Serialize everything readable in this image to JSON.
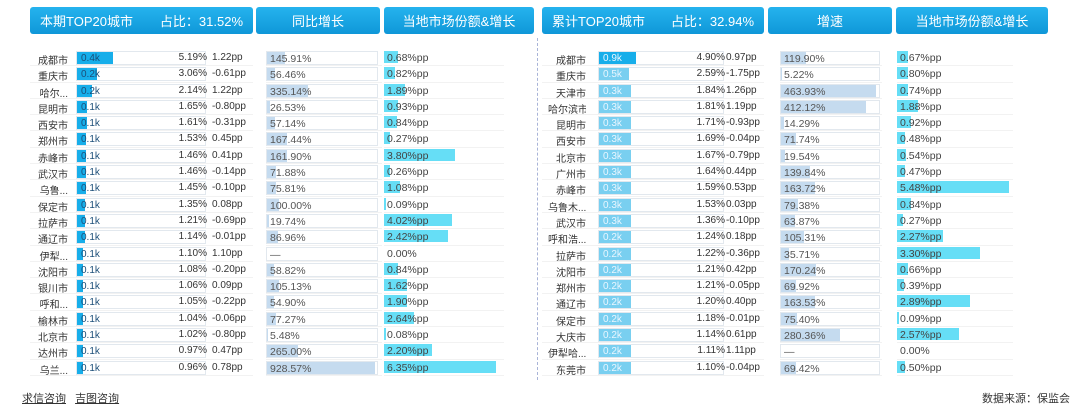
{
  "left": {
    "title": "本期TOP20城市",
    "share_label": "占比：31.52%",
    "growth_header": "同比增长",
    "local_header": "当地市场份额&增长",
    "rows": [
      {
        "city": "成都市",
        "value": "0.4k",
        "value_frac": 0.28,
        "pct": "5.19%",
        "pp": "1.22pp",
        "growth": "145.91%",
        "growth_frac": 0.16,
        "local": "0.68%pp",
        "local_frac": 0.12
      },
      {
        "city": "重庆市",
        "value": "0.2k",
        "value_frac": 0.16,
        "pct": "3.06%",
        "pp": "-0.61pp",
        "growth": "56.46%",
        "growth_frac": 0.07,
        "local": "0.82%pp",
        "local_frac": 0.1
      },
      {
        "city": "哈尔...",
        "value": "0.2k",
        "value_frac": 0.12,
        "pct": "2.14%",
        "pp": "1.22pp",
        "growth": "335.14%",
        "growth_frac": 0.37,
        "local": "1.89%pp",
        "local_frac": 0.18
      },
      {
        "city": "昆明市",
        "value": "0.1k",
        "value_frac": 0.08,
        "pct": "1.65%",
        "pp": "-0.80pp",
        "growth": "26.53%",
        "growth_frac": 0.03,
        "local": "0.93%pp",
        "local_frac": 0.12
      },
      {
        "city": "西安市",
        "value": "0.1k",
        "value_frac": 0.08,
        "pct": "1.61%",
        "pp": "-0.31pp",
        "growth": "57.14%",
        "growth_frac": 0.07,
        "local": "0.84%pp",
        "local_frac": 0.11
      },
      {
        "city": "郑州市",
        "value": "0.1k",
        "value_frac": 0.07,
        "pct": "1.53%",
        "pp": "0.45pp",
        "growth": "167.44%",
        "growth_frac": 0.18,
        "local": "0.27%pp",
        "local_frac": 0.05
      },
      {
        "city": "赤峰市",
        "value": "0.1k",
        "value_frac": 0.07,
        "pct": "1.46%",
        "pp": "0.41pp",
        "growth": "161.90%",
        "growth_frac": 0.18,
        "local": "3.80%pp",
        "local_frac": 0.62
      },
      {
        "city": "武汉市",
        "value": "0.1k",
        "value_frac": 0.07,
        "pct": "1.46%",
        "pp": "-0.14pp",
        "growth": "71.88%",
        "growth_frac": 0.08,
        "local": "0.26%pp",
        "local_frac": 0.05
      },
      {
        "city": "乌鲁...",
        "value": "0.1k",
        "value_frac": 0.07,
        "pct": "1.45%",
        "pp": "-0.10pp",
        "growth": "75.81%",
        "growth_frac": 0.08,
        "local": "1.08%pp",
        "local_frac": 0.14
      },
      {
        "city": "保定市",
        "value": "0.1k",
        "value_frac": 0.06,
        "pct": "1.35%",
        "pp": "0.08pp",
        "growth": "100.00%",
        "growth_frac": 0.11,
        "local": "0.09%pp",
        "local_frac": 0.02
      },
      {
        "city": "拉萨市",
        "value": "0.1k",
        "value_frac": 0.06,
        "pct": "1.21%",
        "pp": "-0.69pp",
        "growth": "19.74%",
        "growth_frac": 0.02,
        "local": "4.02%pp",
        "local_frac": 0.6
      },
      {
        "city": "通辽市",
        "value": "0.1k",
        "value_frac": 0.06,
        "pct": "1.14%",
        "pp": "-0.01pp",
        "growth": "86.96%",
        "growth_frac": 0.1,
        "local": "2.42%pp",
        "local_frac": 0.56
      },
      {
        "city": "伊犁...",
        "value": "0.1k",
        "value_frac": 0.05,
        "pct": "1.10%",
        "pp": "1.10pp",
        "growth": "—",
        "growth_frac": 0,
        "local": "0.00%",
        "local_frac": 0
      },
      {
        "city": "沈阳市",
        "value": "0.1k",
        "value_frac": 0.05,
        "pct": "1.08%",
        "pp": "-0.20pp",
        "growth": "58.82%",
        "growth_frac": 0.06,
        "local": "0.84%pp",
        "local_frac": 0.12
      },
      {
        "city": "银川市",
        "value": "0.1k",
        "value_frac": 0.05,
        "pct": "1.06%",
        "pp": "0.09pp",
        "growth": "105.13%",
        "growth_frac": 0.11,
        "local": "1.62%pp",
        "local_frac": 0.2
      },
      {
        "city": "呼和...",
        "value": "0.1k",
        "value_frac": 0.05,
        "pct": "1.05%",
        "pp": "-0.22pp",
        "growth": "54.90%",
        "growth_frac": 0.06,
        "local": "1.90%pp",
        "local_frac": 0.2
      },
      {
        "city": "榆林市",
        "value": "0.1k",
        "value_frac": 0.05,
        "pct": "1.04%",
        "pp": "-0.06pp",
        "growth": "77.27%",
        "growth_frac": 0.08,
        "local": "2.64%pp",
        "local_frac": 0.26
      },
      {
        "city": "北京市",
        "value": "0.1k",
        "value_frac": 0.05,
        "pct": "1.02%",
        "pp": "-0.80pp",
        "growth": "5.48%",
        "growth_frac": 0.01,
        "local": "0.08%pp",
        "local_frac": 0.02
      },
      {
        "city": "达州市",
        "value": "0.1k",
        "value_frac": 0.05,
        "pct": "0.97%",
        "pp": "0.47pp",
        "growth": "265.00%",
        "growth_frac": 0.28,
        "local": "2.20%pp",
        "local_frac": 0.42
      },
      {
        "city": "乌兰...",
        "value": "0.1k",
        "value_frac": 0.05,
        "pct": "0.96%",
        "pp": "0.78pp",
        "growth": "928.57%",
        "growth_frac": 0.98,
        "local": "6.35%pp",
        "local_frac": 0.98
      }
    ]
  },
  "right": {
    "title": "累计TOP20城市",
    "share_label": "占比：32.94%",
    "growth_header": "增速",
    "local_header": "当地市场份额&增长",
    "rows": [
      {
        "city": "成都市",
        "value": "0.9k",
        "value_frac": 0.3,
        "pct": "4.90%",
        "pp": "0.97pp",
        "growth": "119.90%",
        "growth_frac": 0.26,
        "local": "0.67%pp",
        "local_frac": 0.1
      },
      {
        "city": "重庆市",
        "value": "0.5k",
        "value_frac": 0.24,
        "pct": "2.59%",
        "pp": "-1.75pp",
        "growth": "5.22%",
        "growth_frac": 0.01,
        "local": "0.80%pp",
        "local_frac": 0.1
      },
      {
        "city": "天津市",
        "value": "0.3k",
        "value_frac": 0.26,
        "pct": "1.84%",
        "pp": "1.26pp",
        "growth": "463.93%",
        "growth_frac": 0.97,
        "local": "0.74%pp",
        "local_frac": 0.1
      },
      {
        "city": "哈尔滨市",
        "value": "0.3k",
        "value_frac": 0.26,
        "pct": "1.81%",
        "pp": "1.19pp",
        "growth": "412.12%",
        "growth_frac": 0.87,
        "local": "1.88%pp",
        "local_frac": 0.18
      },
      {
        "city": "昆明市",
        "value": "0.3k",
        "value_frac": 0.26,
        "pct": "1.71%",
        "pp": "-0.93pp",
        "growth": "14.29%",
        "growth_frac": 0.03,
        "local": "0.92%pp",
        "local_frac": 0.12
      },
      {
        "city": "西安市",
        "value": "0.3k",
        "value_frac": 0.26,
        "pct": "1.69%",
        "pp": "-0.04pp",
        "growth": "71.74%",
        "growth_frac": 0.15,
        "local": "0.48%pp",
        "local_frac": 0.07
      },
      {
        "city": "北京市",
        "value": "0.3k",
        "value_frac": 0.26,
        "pct": "1.67%",
        "pp": "-0.79pp",
        "growth": "19.54%",
        "growth_frac": 0.04,
        "local": "0.54%pp",
        "local_frac": 0.08
      },
      {
        "city": "广州市",
        "value": "0.3k",
        "value_frac": 0.26,
        "pct": "1.64%",
        "pp": "0.44pp",
        "growth": "139.84%",
        "growth_frac": 0.3,
        "local": "0.47%pp",
        "local_frac": 0.07
      },
      {
        "city": "赤峰市",
        "value": "0.3k",
        "value_frac": 0.26,
        "pct": "1.59%",
        "pp": "0.53pp",
        "growth": "163.72%",
        "growth_frac": 0.35,
        "local": "5.48%pp",
        "local_frac": 0.98
      },
      {
        "city": "乌鲁木...",
        "value": "0.3k",
        "value_frac": 0.26,
        "pct": "1.53%",
        "pp": "0.03pp",
        "growth": "79.38%",
        "growth_frac": 0.17,
        "local": "0.84%pp",
        "local_frac": 0.12
      },
      {
        "city": "武汉市",
        "value": "0.3k",
        "value_frac": 0.26,
        "pct": "1.36%",
        "pp": "-0.10pp",
        "growth": "63.87%",
        "growth_frac": 0.14,
        "local": "0.27%pp",
        "local_frac": 0.05
      },
      {
        "city": "呼和浩...",
        "value": "0.2k",
        "value_frac": 0.26,
        "pct": "1.24%",
        "pp": "0.18pp",
        "growth": "105.31%",
        "growth_frac": 0.23,
        "local": "2.27%pp",
        "local_frac": 0.4
      },
      {
        "city": "拉萨市",
        "value": "0.2k",
        "value_frac": 0.26,
        "pct": "1.22%",
        "pp": "-0.36pp",
        "growth": "35.71%",
        "growth_frac": 0.08,
        "local": "3.30%pp",
        "local_frac": 0.73
      },
      {
        "city": "沈阳市",
        "value": "0.2k",
        "value_frac": 0.26,
        "pct": "1.21%",
        "pp": "0.42pp",
        "growth": "170.24%",
        "growth_frac": 0.36,
        "local": "0.66%pp",
        "local_frac": 0.1
      },
      {
        "city": "郑州市",
        "value": "0.2k",
        "value_frac": 0.26,
        "pct": "1.21%",
        "pp": "-0.05pp",
        "growth": "69.92%",
        "growth_frac": 0.15,
        "local": "0.39%pp",
        "local_frac": 0.06
      },
      {
        "city": "通辽市",
        "value": "0.2k",
        "value_frac": 0.26,
        "pct": "1.20%",
        "pp": "0.40pp",
        "growth": "163.53%",
        "growth_frac": 0.35,
        "local": "2.89%pp",
        "local_frac": 0.64
      },
      {
        "city": "保定市",
        "value": "0.2k",
        "value_frac": 0.26,
        "pct": "1.18%",
        "pp": "-0.01pp",
        "growth": "75.40%",
        "growth_frac": 0.16,
        "local": "0.09%pp",
        "local_frac": 0.02
      },
      {
        "city": "大庆市",
        "value": "0.2k",
        "value_frac": 0.26,
        "pct": "1.14%",
        "pp": "0.61pp",
        "growth": "280.36%",
        "growth_frac": 0.6,
        "local": "2.57%pp",
        "local_frac": 0.54
      },
      {
        "city": "伊犁哈...",
        "value": "0.2k",
        "value_frac": 0.26,
        "pct": "1.11%",
        "pp": "1.11pp",
        "growth": "—",
        "growth_frac": 0,
        "local": "0.00%",
        "local_frac": 0
      },
      {
        "city": "东莞市",
        "value": "0.2k",
        "value_frac": 0.26,
        "pct": "1.10%",
        "pp": "-0.04pp",
        "growth": "69.42%",
        "growth_frac": 0.15,
        "local": "0.50%pp",
        "local_frac": 0.07
      }
    ]
  },
  "footer": {
    "links": [
      "求信咨询",
      "吉图咨询"
    ],
    "source": "数据来源：保监会"
  }
}
